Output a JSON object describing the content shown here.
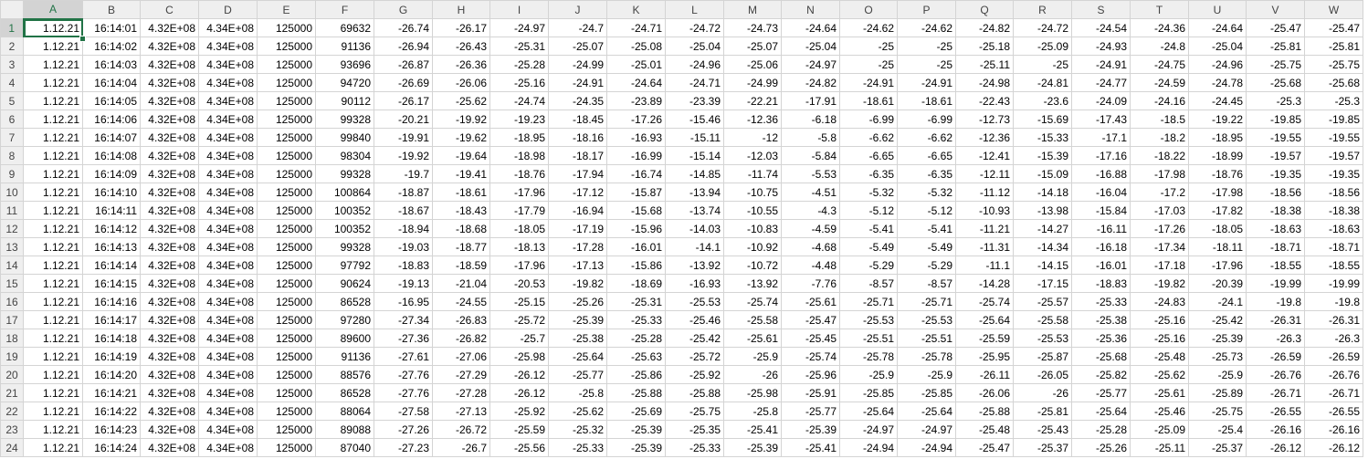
{
  "sheet": {
    "columns": [
      "A",
      "B",
      "C",
      "D",
      "E",
      "F",
      "G",
      "H",
      "I",
      "J",
      "K",
      "L",
      "M",
      "N",
      "O",
      "P",
      "Q",
      "R",
      "S",
      "T",
      "U",
      "V",
      "W"
    ],
    "active_cell": "A1",
    "accent_color": "#217346",
    "rows": [
      {
        "n": "1",
        "cells": [
          "1.12.21",
          "16:14:01",
          "4.32E+08",
          "4.34E+08",
          "125000",
          "69632",
          "-26.74",
          "-26.17",
          "-24.97",
          "-24.7",
          "-24.71",
          "-24.72",
          "-24.73",
          "-24.64",
          "-24.62",
          "-24.62",
          "-24.82",
          "-24.72",
          "-24.54",
          "-24.36",
          "-24.64",
          "-25.47",
          "-25.47"
        ]
      },
      {
        "n": "2",
        "cells": [
          "1.12.21",
          "16:14:02",
          "4.32E+08",
          "4.34E+08",
          "125000",
          "91136",
          "-26.94",
          "-26.43",
          "-25.31",
          "-25.07",
          "-25.08",
          "-25.04",
          "-25.07",
          "-25.04",
          "-25",
          "-25",
          "-25.18",
          "-25.09",
          "-24.93",
          "-24.8",
          "-25.04",
          "-25.81",
          "-25.81"
        ]
      },
      {
        "n": "3",
        "cells": [
          "1.12.21",
          "16:14:03",
          "4.32E+08",
          "4.34E+08",
          "125000",
          "93696",
          "-26.87",
          "-26.36",
          "-25.28",
          "-24.99",
          "-25.01",
          "-24.96",
          "-25.06",
          "-24.97",
          "-25",
          "-25",
          "-25.11",
          "-25",
          "-24.91",
          "-24.75",
          "-24.96",
          "-25.75",
          "-25.75"
        ]
      },
      {
        "n": "4",
        "cells": [
          "1.12.21",
          "16:14:04",
          "4.32E+08",
          "4.34E+08",
          "125000",
          "94720",
          "-26.69",
          "-26.06",
          "-25.16",
          "-24.91",
          "-24.64",
          "-24.71",
          "-24.99",
          "-24.82",
          "-24.91",
          "-24.91",
          "-24.98",
          "-24.81",
          "-24.77",
          "-24.59",
          "-24.78",
          "-25.68",
          "-25.68"
        ]
      },
      {
        "n": "5",
        "cells": [
          "1.12.21",
          "16:14:05",
          "4.32E+08",
          "4.34E+08",
          "125000",
          "90112",
          "-26.17",
          "-25.62",
          "-24.74",
          "-24.35",
          "-23.89",
          "-23.39",
          "-22.21",
          "-17.91",
          "-18.61",
          "-18.61",
          "-22.43",
          "-23.6",
          "-24.09",
          "-24.16",
          "-24.45",
          "-25.3",
          "-25.3"
        ]
      },
      {
        "n": "6",
        "cells": [
          "1.12.21",
          "16:14:06",
          "4.32E+08",
          "4.34E+08",
          "125000",
          "99328",
          "-20.21",
          "-19.92",
          "-19.23",
          "-18.45",
          "-17.26",
          "-15.46",
          "-12.36",
          "-6.18",
          "-6.99",
          "-6.99",
          "-12.73",
          "-15.69",
          "-17.43",
          "-18.5",
          "-19.22",
          "-19.85",
          "-19.85"
        ]
      },
      {
        "n": "7",
        "cells": [
          "1.12.21",
          "16:14:07",
          "4.32E+08",
          "4.34E+08",
          "125000",
          "99840",
          "-19.91",
          "-19.62",
          "-18.95",
          "-18.16",
          "-16.93",
          "-15.11",
          "-12",
          "-5.8",
          "-6.62",
          "-6.62",
          "-12.36",
          "-15.33",
          "-17.1",
          "-18.2",
          "-18.95",
          "-19.55",
          "-19.55"
        ]
      },
      {
        "n": "8",
        "cells": [
          "1.12.21",
          "16:14:08",
          "4.32E+08",
          "4.34E+08",
          "125000",
          "98304",
          "-19.92",
          "-19.64",
          "-18.98",
          "-18.17",
          "-16.99",
          "-15.14",
          "-12.03",
          "-5.84",
          "-6.65",
          "-6.65",
          "-12.41",
          "-15.39",
          "-17.16",
          "-18.22",
          "-18.99",
          "-19.57",
          "-19.57"
        ]
      },
      {
        "n": "9",
        "cells": [
          "1.12.21",
          "16:14:09",
          "4.32E+08",
          "4.34E+08",
          "125000",
          "99328",
          "-19.7",
          "-19.41",
          "-18.76",
          "-17.94",
          "-16.74",
          "-14.85",
          "-11.74",
          "-5.53",
          "-6.35",
          "-6.35",
          "-12.11",
          "-15.09",
          "-16.88",
          "-17.98",
          "-18.76",
          "-19.35",
          "-19.35"
        ]
      },
      {
        "n": "10",
        "cells": [
          "1.12.21",
          "16:14:10",
          "4.32E+08",
          "4.34E+08",
          "125000",
          "100864",
          "-18.87",
          "-18.61",
          "-17.96",
          "-17.12",
          "-15.87",
          "-13.94",
          "-10.75",
          "-4.51",
          "-5.32",
          "-5.32",
          "-11.12",
          "-14.18",
          "-16.04",
          "-17.2",
          "-17.98",
          "-18.56",
          "-18.56"
        ]
      },
      {
        "n": "11",
        "cells": [
          "1.12.21",
          "16:14:11",
          "4.32E+08",
          "4.34E+08",
          "125000",
          "100352",
          "-18.67",
          "-18.43",
          "-17.79",
          "-16.94",
          "-15.68",
          "-13.74",
          "-10.55",
          "-4.3",
          "-5.12",
          "-5.12",
          "-10.93",
          "-13.98",
          "-15.84",
          "-17.03",
          "-17.82",
          "-18.38",
          "-18.38"
        ]
      },
      {
        "n": "12",
        "cells": [
          "1.12.21",
          "16:14:12",
          "4.32E+08",
          "4.34E+08",
          "125000",
          "100352",
          "-18.94",
          "-18.68",
          "-18.05",
          "-17.19",
          "-15.96",
          "-14.03",
          "-10.83",
          "-4.59",
          "-5.41",
          "-5.41",
          "-11.21",
          "-14.27",
          "-16.11",
          "-17.26",
          "-18.05",
          "-18.63",
          "-18.63"
        ]
      },
      {
        "n": "13",
        "cells": [
          "1.12.21",
          "16:14:13",
          "4.32E+08",
          "4.34E+08",
          "125000",
          "99328",
          "-19.03",
          "-18.77",
          "-18.13",
          "-17.28",
          "-16.01",
          "-14.1",
          "-10.92",
          "-4.68",
          "-5.49",
          "-5.49",
          "-11.31",
          "-14.34",
          "-16.18",
          "-17.34",
          "-18.11",
          "-18.71",
          "-18.71"
        ]
      },
      {
        "n": "14",
        "cells": [
          "1.12.21",
          "16:14:14",
          "4.32E+08",
          "4.34E+08",
          "125000",
          "97792",
          "-18.83",
          "-18.59",
          "-17.96",
          "-17.13",
          "-15.86",
          "-13.92",
          "-10.72",
          "-4.48",
          "-5.29",
          "-5.29",
          "-11.1",
          "-14.15",
          "-16.01",
          "-17.18",
          "-17.96",
          "-18.55",
          "-18.55"
        ]
      },
      {
        "n": "15",
        "cells": [
          "1.12.21",
          "16:14:15",
          "4.32E+08",
          "4.34E+08",
          "125000",
          "90624",
          "-19.13",
          "-21.04",
          "-20.53",
          "-19.82",
          "-18.69",
          "-16.93",
          "-13.92",
          "-7.76",
          "-8.57",
          "-8.57",
          "-14.28",
          "-17.15",
          "-18.83",
          "-19.82",
          "-20.39",
          "-19.99",
          "-19.99"
        ]
      },
      {
        "n": "16",
        "cells": [
          "1.12.21",
          "16:14:16",
          "4.32E+08",
          "4.34E+08",
          "125000",
          "86528",
          "-16.95",
          "-24.55",
          "-25.15",
          "-25.26",
          "-25.31",
          "-25.53",
          "-25.74",
          "-25.61",
          "-25.71",
          "-25.71",
          "-25.74",
          "-25.57",
          "-25.33",
          "-24.83",
          "-24.1",
          "-19.8",
          "-19.8"
        ]
      },
      {
        "n": "17",
        "cells": [
          "1.12.21",
          "16:14:17",
          "4.32E+08",
          "4.34E+08",
          "125000",
          "97280",
          "-27.34",
          "-26.83",
          "-25.72",
          "-25.39",
          "-25.33",
          "-25.46",
          "-25.58",
          "-25.47",
          "-25.53",
          "-25.53",
          "-25.64",
          "-25.58",
          "-25.38",
          "-25.16",
          "-25.42",
          "-26.31",
          "-26.31"
        ]
      },
      {
        "n": "18",
        "cells": [
          "1.12.21",
          "16:14:18",
          "4.32E+08",
          "4.34E+08",
          "125000",
          "89600",
          "-27.36",
          "-26.82",
          "-25.7",
          "-25.38",
          "-25.28",
          "-25.42",
          "-25.61",
          "-25.45",
          "-25.51",
          "-25.51",
          "-25.59",
          "-25.53",
          "-25.36",
          "-25.16",
          "-25.39",
          "-26.3",
          "-26.3"
        ]
      },
      {
        "n": "19",
        "cells": [
          "1.12.21",
          "16:14:19",
          "4.32E+08",
          "4.34E+08",
          "125000",
          "91136",
          "-27.61",
          "-27.06",
          "-25.98",
          "-25.64",
          "-25.63",
          "-25.72",
          "-25.9",
          "-25.74",
          "-25.78",
          "-25.78",
          "-25.95",
          "-25.87",
          "-25.68",
          "-25.48",
          "-25.73",
          "-26.59",
          "-26.59"
        ]
      },
      {
        "n": "20",
        "cells": [
          "1.12.21",
          "16:14:20",
          "4.32E+08",
          "4.34E+08",
          "125000",
          "88576",
          "-27.76",
          "-27.29",
          "-26.12",
          "-25.77",
          "-25.86",
          "-25.92",
          "-26",
          "-25.96",
          "-25.9",
          "-25.9",
          "-26.11",
          "-26.05",
          "-25.82",
          "-25.62",
          "-25.9",
          "-26.76",
          "-26.76"
        ]
      },
      {
        "n": "21",
        "cells": [
          "1.12.21",
          "16:14:21",
          "4.32E+08",
          "4.34E+08",
          "125000",
          "86528",
          "-27.76",
          "-27.28",
          "-26.12",
          "-25.8",
          "-25.88",
          "-25.88",
          "-25.98",
          "-25.91",
          "-25.85",
          "-25.85",
          "-26.06",
          "-26",
          "-25.77",
          "-25.61",
          "-25.89",
          "-26.71",
          "-26.71"
        ]
      },
      {
        "n": "22",
        "cells": [
          "1.12.21",
          "16:14:22",
          "4.32E+08",
          "4.34E+08",
          "125000",
          "88064",
          "-27.58",
          "-27.13",
          "-25.92",
          "-25.62",
          "-25.69",
          "-25.75",
          "-25.8",
          "-25.77",
          "-25.64",
          "-25.64",
          "-25.88",
          "-25.81",
          "-25.64",
          "-25.46",
          "-25.75",
          "-26.55",
          "-26.55"
        ]
      },
      {
        "n": "23",
        "cells": [
          "1.12.21",
          "16:14:23",
          "4.32E+08",
          "4.34E+08",
          "125000",
          "89088",
          "-27.26",
          "-26.72",
          "-25.59",
          "-25.32",
          "-25.39",
          "-25.35",
          "-25.41",
          "-25.39",
          "-24.97",
          "-24.97",
          "-25.48",
          "-25.43",
          "-25.28",
          "-25.09",
          "-25.4",
          "-26.16",
          "-26.16"
        ]
      },
      {
        "n": "24",
        "cells": [
          "1.12.21",
          "16:14:24",
          "4.32E+08",
          "4.34E+08",
          "125000",
          "87040",
          "-27.23",
          "-26.7",
          "-25.56",
          "-25.33",
          "-25.39",
          "-25.33",
          "-25.39",
          "-25.41",
          "-24.94",
          "-24.94",
          "-25.47",
          "-25.37",
          "-25.26",
          "-25.11",
          "-25.37",
          "-26.12",
          "-26.12"
        ]
      }
    ]
  }
}
